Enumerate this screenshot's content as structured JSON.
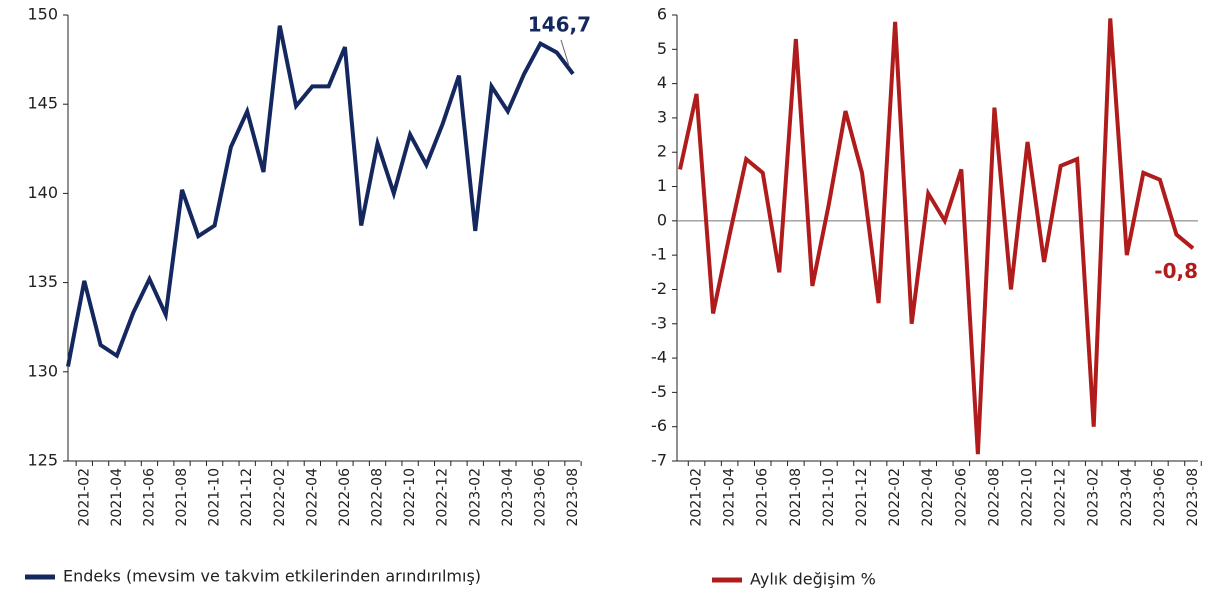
{
  "chart_data": [
    {
      "type": "line",
      "categories": [
        null,
        "2021-02",
        null,
        "2021-04",
        null,
        "2021-06",
        null,
        "2021-08",
        null,
        "2021-10",
        null,
        "2021-12",
        null,
        "2022-02",
        null,
        "2022-04",
        null,
        "2022-06",
        null,
        "2022-08",
        null,
        "2022-10",
        null,
        "2022-12",
        null,
        "2023-02",
        null,
        "2023-04",
        null,
        "2023-06",
        null,
        "2023-08"
      ],
      "series": [
        {
          "name": "Endeks (mevsim ve takvim etkilerinden arındırılmış)",
          "color": "#14285f",
          "values": [
            130.3,
            135.1,
            131.5,
            130.9,
            133.3,
            135.2,
            133.2,
            140.2,
            137.6,
            138.2,
            142.6,
            144.6,
            141.2,
            149.4,
            144.9,
            146.0,
            146.0,
            148.2,
            138.2,
            142.8,
            140.0,
            143.3,
            141.6,
            143.9,
            146.6,
            137.9,
            146.0,
            144.6,
            146.7,
            148.4,
            147.9,
            146.7
          ],
          "value_labels": [
            null,
            null,
            null,
            null,
            null,
            null,
            null,
            null,
            null,
            null,
            null,
            null,
            null,
            null,
            null,
            null,
            null,
            null,
            null,
            null,
            null,
            null,
            null,
            null,
            null,
            null,
            null,
            null,
            null,
            null,
            null,
            "146,7"
          ]
        }
      ],
      "ylim": [
        125,
        150
      ],
      "yticks": [
        125,
        130,
        135,
        140,
        145,
        150
      ]
    },
    {
      "type": "line",
      "categories": [
        null,
        "2021-02",
        null,
        "2021-04",
        null,
        "2021-06",
        null,
        "2021-08",
        null,
        "2021-10",
        null,
        "2021-12",
        null,
        "2022-02",
        null,
        "2022-04",
        null,
        "2022-06",
        null,
        "2022-08",
        null,
        "2022-10",
        null,
        "2022-12",
        null,
        "2023-02",
        null,
        "2023-04",
        null,
        "2023-06",
        null,
        "2023-08"
      ],
      "series": [
        {
          "name": "Aylık değişim %",
          "color": "#b01c1c",
          "values": [
            1.5,
            3.7,
            -2.7,
            -0.4,
            1.8,
            1.4,
            -1.5,
            5.3,
            -1.9,
            0.5,
            3.2,
            1.4,
            -2.4,
            5.8,
            -3.0,
            0.8,
            0.0,
            1.5,
            -6.8,
            3.3,
            -2.0,
            2.3,
            -1.2,
            1.6,
            1.8,
            -6.0,
            5.9,
            -1.0,
            1.4,
            1.2,
            -0.4,
            -0.8
          ],
          "value_labels": [
            null,
            null,
            null,
            null,
            null,
            null,
            null,
            null,
            null,
            null,
            null,
            null,
            null,
            null,
            null,
            null,
            null,
            null,
            null,
            null,
            null,
            null,
            null,
            null,
            null,
            null,
            null,
            null,
            null,
            null,
            null,
            "-0,8"
          ]
        }
      ],
      "ylim": [
        -7,
        6
      ],
      "yticks": [
        -7,
        -6,
        -5,
        -4,
        -3,
        -2,
        -1,
        0,
        1,
        2,
        3,
        4,
        5,
        6
      ],
      "zero_line": true
    }
  ]
}
